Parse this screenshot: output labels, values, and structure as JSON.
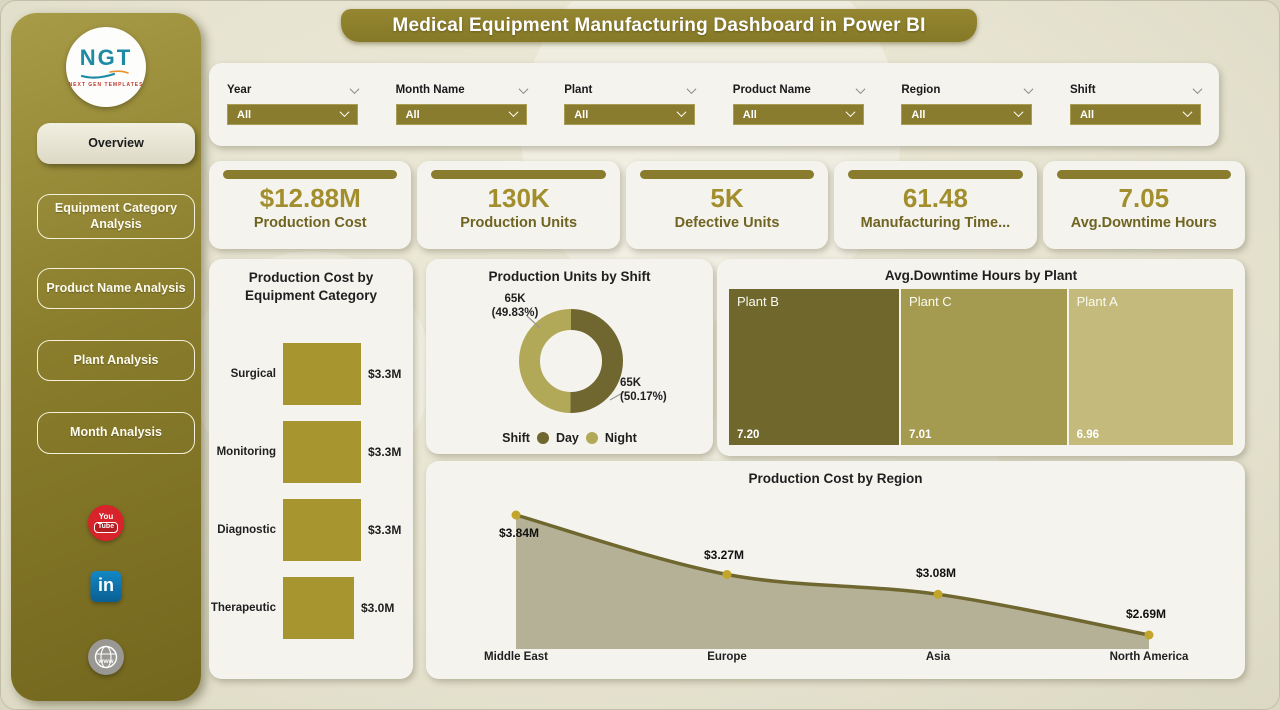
{
  "title": "Medical Equipment Manufacturing Dashboard in Power BI",
  "logo": {
    "name": "NGT",
    "tagline": "NEXT GEN TEMPLATES"
  },
  "sidebar": {
    "items": [
      {
        "label": "Overview",
        "active": true
      },
      {
        "label": "Equipment Category Analysis",
        "active": false
      },
      {
        "label": "Product Name Analysis",
        "active": false
      },
      {
        "label": "Plant Analysis",
        "active": false
      },
      {
        "label": "Month Analysis",
        "active": false
      }
    ]
  },
  "social": {
    "youtube_top": "You",
    "youtube_bottom": "Tube",
    "linkedin": "in",
    "website": "www"
  },
  "filters": [
    {
      "label": "Year",
      "value": "All"
    },
    {
      "label": "Month Name",
      "value": "All"
    },
    {
      "label": "Plant",
      "value": "All"
    },
    {
      "label": "Product Name",
      "value": "All"
    },
    {
      "label": "Region",
      "value": "All"
    },
    {
      "label": "Shift",
      "value": "All"
    }
  ],
  "kpis": [
    {
      "value": "$12.88M",
      "label": "Production Cost"
    },
    {
      "value": "130K",
      "label": "Production Units"
    },
    {
      "value": "5K",
      "label": "Defective Units"
    },
    {
      "value": "61.48",
      "label": "Manufacturing Time..."
    },
    {
      "value": "7.05",
      "label": "Avg.Downtime Hours"
    }
  ],
  "colors": {
    "olive_accent": "#8a7c2e",
    "kpi_value_gold": "#a28e2c",
    "bar_fill": "#a7962f",
    "donut_day": "#6f672f",
    "donut_night": "#b2a958",
    "treemap": [
      "#6f672c",
      "#a49b50",
      "#c3ba7c"
    ],
    "area_fill": "#b5b196",
    "area_line": "#6f672f",
    "marker": "#c2a62b"
  },
  "chart_data": [
    {
      "type": "bar",
      "orientation": "horizontal",
      "title": "Production Cost by Equipment Category",
      "title_line1": "Production Cost by",
      "title_line2": "Equipment Category",
      "categories": [
        "Surgical",
        "Monitoring",
        "Diagnostic",
        "Therapeutic"
      ],
      "values": [
        3.3,
        3.3,
        3.3,
        3.0
      ],
      "data_labels": [
        "$3.3M",
        "$3.3M",
        "$3.3M",
        "$3.0M"
      ],
      "unit": "USD millions",
      "grid": false
    },
    {
      "type": "pie",
      "variant": "donut",
      "title": "Production Units by Shift",
      "legend_title": "Shift",
      "legend_position": "bottom",
      "slices": [
        {
          "name": "Day",
          "value_label": "65K",
          "pct": 50.17,
          "pct_label": "(50.17%)"
        },
        {
          "name": "Night",
          "value_label": "65K",
          "pct": 49.83,
          "pct_label": "(49.83%)"
        }
      ]
    },
    {
      "type": "treemap",
      "title": "Avg.Downtime Hours by Plant",
      "categories": [
        "Plant B",
        "Plant C",
        "Plant A"
      ],
      "values": [
        7.2,
        7.01,
        6.96
      ],
      "data_labels": [
        "7.20",
        "7.01",
        "6.96"
      ]
    },
    {
      "type": "area",
      "title": "Production Cost by Region",
      "categories": [
        "Middle East",
        "Europe",
        "Asia",
        "North America"
      ],
      "values": [
        3.84,
        3.27,
        3.08,
        2.69
      ],
      "data_labels": [
        "$3.84M",
        "$3.27M",
        "$3.08M",
        "$2.69M"
      ],
      "unit": "USD millions",
      "grid": false
    }
  ]
}
